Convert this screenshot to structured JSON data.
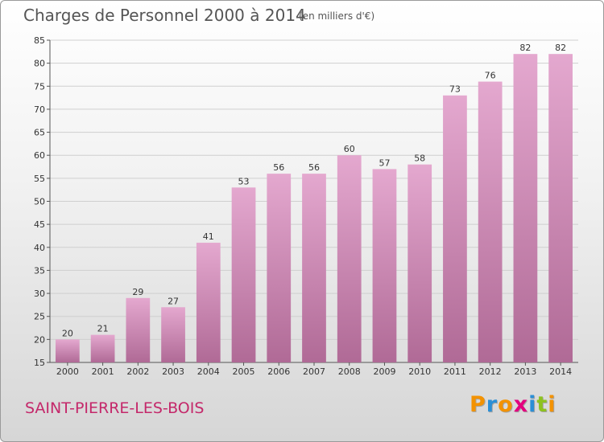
{
  "title": "Charges de Personnel 2000 à 2014",
  "subtitle": "(en milliers d'€)",
  "city": "SAINT-PIERRE-LES-BOIS",
  "logo": {
    "letters": [
      "P",
      "r",
      "o",
      "x",
      "i",
      "t",
      "i"
    ],
    "colors": [
      "#f39200",
      "#2b8fd6",
      "#f39200",
      "#e3007e",
      "#2b8fd6",
      "#8dc21f",
      "#f39200"
    ]
  },
  "colors": {
    "bar_top": "#e4a8cf",
    "bar_bottom": "#b06a96",
    "city": "#c4286a"
  },
  "chart_data": {
    "type": "bar",
    "categories": [
      "2000",
      "2001",
      "2002",
      "2003",
      "2004",
      "2005",
      "2006",
      "2007",
      "2008",
      "2009",
      "2010",
      "2011",
      "2012",
      "2013",
      "2014"
    ],
    "values": [
      20,
      21,
      29,
      27,
      41,
      53,
      56,
      56,
      60,
      57,
      58,
      73,
      76,
      82,
      82
    ],
    "data_labels": [
      "20",
      "21",
      "29",
      "27",
      "41",
      "53",
      "56",
      "56",
      "60",
      "57",
      "58",
      "73",
      "76",
      "82",
      "82"
    ],
    "y_ticks": [
      15,
      20,
      25,
      30,
      35,
      40,
      45,
      50,
      55,
      60,
      65,
      70,
      75,
      80,
      85
    ],
    "ylim": [
      15,
      85
    ],
    "title": "Charges de Personnel 2000 à 2014",
    "xlabel": "",
    "ylabel": "",
    "grid": true,
    "legend": false
  }
}
